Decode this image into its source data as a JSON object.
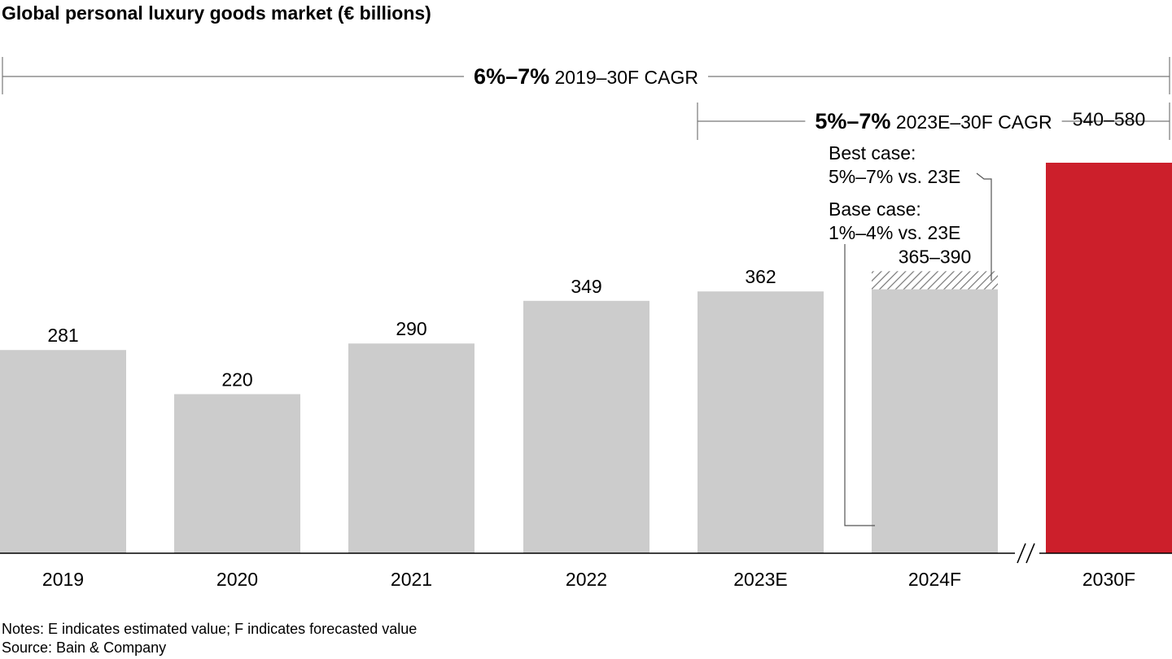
{
  "chart_data": {
    "type": "bar",
    "title": "Global personal luxury goods market (€ billions)",
    "xlabel": "",
    "ylabel": "",
    "ylim": [
      0,
      620
    ],
    "grid": false,
    "categories": [
      "2019",
      "2020",
      "2021",
      "2022",
      "2023E",
      "2024F",
      "2030F"
    ],
    "values": [
      281,
      220,
      290,
      349,
      362,
      365,
      540
    ],
    "data_labels": [
      "281",
      "220",
      "290",
      "349",
      "362",
      "365–390",
      "540–580"
    ],
    "ranges": [
      {
        "category": "2024F",
        "low": 365,
        "high": 390,
        "fill": "hatched"
      },
      {
        "category": "2030F",
        "low": 540,
        "high": 580
      }
    ],
    "bar_colors": [
      "#cccccc",
      "#cccccc",
      "#cccccc",
      "#cccccc",
      "#cccccc",
      "#cccccc",
      "#cc1f2b"
    ],
    "axis_break_between": [
      "2024F",
      "2030F"
    ],
    "cagr_brackets": [
      {
        "value": "6%–7%",
        "label": "2019–30F CAGR",
        "from": "2019",
        "to": "2030F"
      },
      {
        "value": "5%–7%",
        "label": "2023E–30F CAGR",
        "from": "2023E",
        "to": "2030F"
      }
    ],
    "annotations": [
      {
        "lines": [
          "Best case:",
          "5%–7% vs. 23E"
        ],
        "target": "2024F"
      },
      {
        "lines": [
          "Base case:",
          "1%–4% vs. 23E"
        ],
        "target": "2024F"
      }
    ]
  },
  "notes": {
    "line1": "Notes: E indicates estimated value; F indicates forecasted value",
    "line2": "Source: Bain & Company"
  }
}
